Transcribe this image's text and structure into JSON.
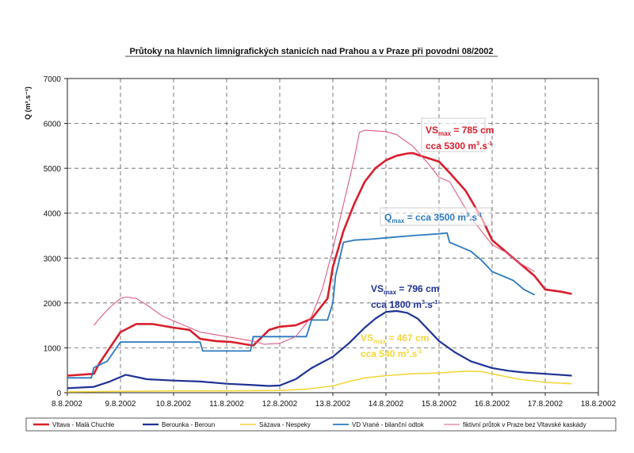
{
  "chart_data": {
    "type": "line",
    "title": "Průtoky na hlavních limnigrafických stanicích nad Prahou a v Praze při povodni 08/2002",
    "ylabel": "Q (m³.s⁻¹)",
    "xlabel": "",
    "ylim": [
      0,
      7000
    ],
    "yticks": [
      0,
      1000,
      2000,
      3000,
      4000,
      5000,
      6000,
      7000
    ],
    "xlim": [
      0,
      10
    ],
    "xticks": [
      "8.8.2002",
      "9.8.2002",
      "10.8.2002",
      "11.8.2002",
      "12.8.2002",
      "13.8.2002",
      "14.8.2002",
      "15.8.2002",
      "16.8.2002",
      "17.8.2002",
      "18.8.2002"
    ],
    "grid": true,
    "legend_position": "bottom",
    "series": [
      {
        "name": "Vltava - Malá Chuchle",
        "color": "#d81e2c",
        "x": [
          0,
          0.5,
          0.6,
          0.8,
          1.0,
          1.3,
          1.6,
          2.0,
          2.3,
          2.5,
          2.8,
          3.1,
          3.5,
          3.8,
          4.0,
          4.3,
          4.6,
          4.9,
          5.0,
          5.2,
          5.4,
          5.6,
          5.8,
          6.0,
          6.2,
          6.4,
          6.5,
          6.7,
          7.0,
          7.2,
          7.5,
          7.8,
          8.0,
          8.3,
          8.5,
          8.8,
          9.0,
          9.3,
          9.5
        ],
        "y": [
          380,
          420,
          650,
          1000,
          1350,
          1530,
          1530,
          1450,
          1400,
          1200,
          1150,
          1130,
          1050,
          1400,
          1470,
          1500,
          1650,
          2100,
          2800,
          3600,
          4200,
          4700,
          5000,
          5180,
          5280,
          5330,
          5340,
          5260,
          5150,
          4900,
          4500,
          3900,
          3400,
          3100,
          2900,
          2600,
          2300,
          2250,
          2200
        ]
      },
      {
        "name": "Berounka - Beroun",
        "color": "#1f3294",
        "x": [
          0,
          0.5,
          0.8,
          1.1,
          1.5,
          2.0,
          2.5,
          3.0,
          3.5,
          3.8,
          4.0,
          4.3,
          4.6,
          5.0,
          5.3,
          5.6,
          5.8,
          6.0,
          6.2,
          6.4,
          6.6,
          6.8,
          7.0,
          7.3,
          7.6,
          8.0,
          8.3,
          8.6,
          9.0,
          9.5
        ],
        "y": [
          100,
          130,
          250,
          400,
          300,
          270,
          250,
          200,
          170,
          150,
          160,
          300,
          550,
          800,
          1100,
          1450,
          1650,
          1800,
          1820,
          1780,
          1650,
          1400,
          1150,
          900,
          700,
          550,
          490,
          450,
          420,
          380
        ]
      },
      {
        "name": "Sázava - Nespeky",
        "color": "#f3d63b",
        "x": [
          0,
          1.0,
          2.0,
          3.0,
          4.0,
          4.5,
          5.0,
          5.3,
          5.6,
          6.0,
          6.5,
          7.0,
          7.5,
          7.8,
          8.0,
          8.5,
          9.0,
          9.5
        ],
        "y": [
          20,
          30,
          40,
          40,
          50,
          80,
          150,
          250,
          330,
          380,
          420,
          440,
          480,
          470,
          420,
          300,
          230,
          200
        ]
      },
      {
        "name": "VD Vrané - bilanční odtok",
        "color": "#2b79c0",
        "x": [
          0,
          0.45,
          0.5,
          0.75,
          1.0,
          1.5,
          2.0,
          2.5,
          2.55,
          3.0,
          3.45,
          3.5,
          4.0,
          4.5,
          4.6,
          4.9,
          5.0,
          5.05,
          5.2,
          5.4,
          5.7,
          6.0,
          6.5,
          7.0,
          7.15,
          7.2,
          7.4,
          7.6,
          7.8,
          8.0,
          8.2,
          8.4,
          8.6,
          8.8
        ],
        "y": [
          330,
          330,
          560,
          700,
          1130,
          1130,
          1130,
          1130,
          930,
          930,
          930,
          1250,
          1250,
          1250,
          1620,
          1620,
          2000,
          2600,
          3350,
          3400,
          3420,
          3450,
          3500,
          3540,
          3560,
          3350,
          3250,
          3150,
          2950,
          2700,
          2600,
          2500,
          2300,
          2180
        ]
      },
      {
        "name": "fiktivní průtok v Praze bez Vltavské kaskády",
        "color": "#e05a84",
        "x": [
          0.5,
          0.6,
          0.8,
          1.0,
          1.1,
          1.3,
          1.5,
          1.8,
          2.2,
          2.5,
          3.0,
          3.5,
          3.7,
          4.0,
          4.3,
          4.6,
          4.8,
          5.0,
          5.2,
          5.4,
          5.5,
          5.6,
          6.0,
          6.2,
          6.5,
          6.8,
          7.0,
          7.2,
          7.4,
          7.6,
          7.8,
          8.0,
          8.3,
          8.5,
          8.8
        ],
        "y": [
          1500,
          1650,
          1900,
          2100,
          2130,
          2100,
          1950,
          1700,
          1500,
          1350,
          1250,
          1150,
          1080,
          1100,
          1250,
          1700,
          2300,
          3200,
          4200,
          5200,
          5800,
          5850,
          5820,
          5750,
          5500,
          5100,
          4800,
          4700,
          4300,
          3900,
          3600,
          3300,
          3100,
          2900,
          2700
        ]
      }
    ],
    "annotations": [
      {
        "prefix": "VS",
        "sub": "max",
        "text": " = 785 cm",
        "line2": "cca 5300 m",
        "sup": "3",
        "tail": ".s",
        "sup2": "-1",
        "color": "#d81e2c",
        "boxed": true
      },
      {
        "prefix": "Q",
        "sub": "max",
        "text": " = cca 3500 m",
        "sup": "3",
        "tail": ".s",
        "sup2": "-1",
        "color": "#2b79c0",
        "boxed": true
      },
      {
        "prefix": "VS",
        "sub": "max",
        "text": " = 796 cm",
        "line2": "cca 1800 m",
        "sup": "3",
        "tail": ".s",
        "sup2": "-1",
        "color": "#1f3294",
        "boxed": false
      },
      {
        "prefix": "VS",
        "sub": "max",
        "text": " = 467 cm",
        "line2": "cca 540 m",
        "sup": "3",
        "tail": ".s",
        "sup2": "-1",
        "color": "#f3d63b",
        "boxed": false
      }
    ]
  }
}
